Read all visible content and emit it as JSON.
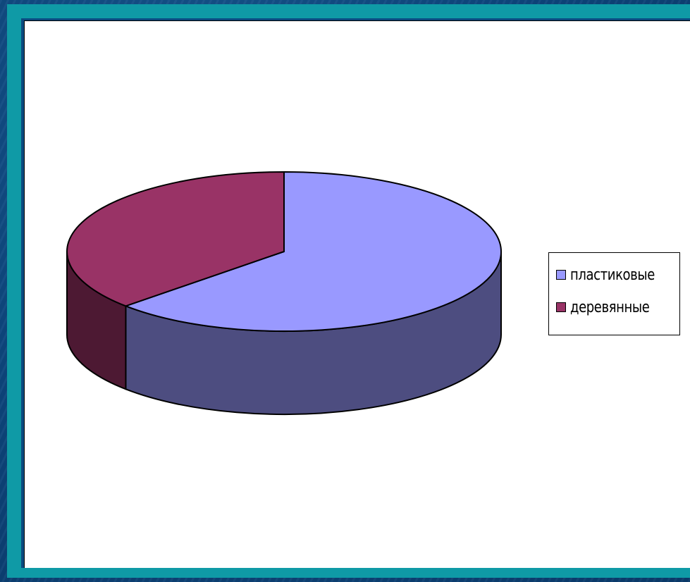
{
  "chart_data": {
    "type": "pie",
    "style": "3d",
    "slices": [
      {
        "name": "пластиковые",
        "value": 63,
        "color": "#9999ff",
        "side_color": "#4d4d80"
      },
      {
        "name": "деревянные",
        "value": 37,
        "color": "#993366",
        "side_color": "#4d1933"
      }
    ],
    "legend": {
      "placement": "right",
      "entries": [
        "пластиковые",
        "деревянные"
      ]
    }
  },
  "theme": {
    "slide_background": "#0b3f73",
    "frame_color": "#0f9aa6",
    "chart_background": "#ffffff"
  }
}
